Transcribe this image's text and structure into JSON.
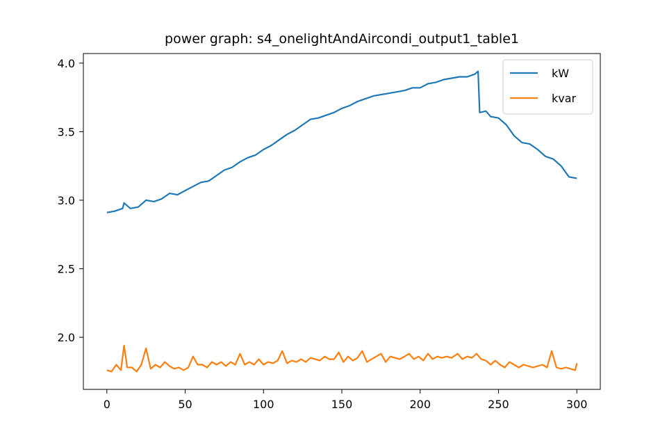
{
  "chart_data": {
    "type": "line",
    "title": "power graph: s4_onelightAndAircondi_output1_table1",
    "xlabel": "",
    "ylabel": "",
    "xlim": [
      -15,
      315
    ],
    "ylim": [
      1.62,
      4.07
    ],
    "x_ticks": [
      "0",
      "50",
      "100",
      "150",
      "200",
      "250",
      "300"
    ],
    "y_ticks": [
      "2.0",
      "2.5",
      "3.0",
      "3.5",
      "4.0"
    ],
    "legend_position": "top-right",
    "grid": false,
    "series": [
      {
        "name": "kW",
        "color": "#1f77b4",
        "points": [
          [
            0,
            2.91
          ],
          [
            5,
            2.92
          ],
          [
            10,
            2.94
          ],
          [
            11,
            2.98
          ],
          [
            15,
            2.94
          ],
          [
            20,
            2.95
          ],
          [
            25,
            3.0
          ],
          [
            30,
            2.99
          ],
          [
            35,
            3.01
          ],
          [
            40,
            3.05
          ],
          [
            45,
            3.04
          ],
          [
            50,
            3.07
          ],
          [
            55,
            3.1
          ],
          [
            60,
            3.13
          ],
          [
            65,
            3.14
          ],
          [
            70,
            3.18
          ],
          [
            75,
            3.22
          ],
          [
            80,
            3.24
          ],
          [
            85,
            3.28
          ],
          [
            90,
            3.31
          ],
          [
            95,
            3.33
          ],
          [
            100,
            3.37
          ],
          [
            105,
            3.4
          ],
          [
            110,
            3.44
          ],
          [
            115,
            3.48
          ],
          [
            120,
            3.51
          ],
          [
            125,
            3.55
          ],
          [
            130,
            3.59
          ],
          [
            135,
            3.6
          ],
          [
            140,
            3.62
          ],
          [
            145,
            3.64
          ],
          [
            150,
            3.67
          ],
          [
            155,
            3.69
          ],
          [
            160,
            3.72
          ],
          [
            165,
            3.74
          ],
          [
            170,
            3.76
          ],
          [
            175,
            3.77
          ],
          [
            180,
            3.78
          ],
          [
            185,
            3.79
          ],
          [
            190,
            3.8
          ],
          [
            195,
            3.82
          ],
          [
            200,
            3.82
          ],
          [
            205,
            3.85
          ],
          [
            210,
            3.86
          ],
          [
            215,
            3.88
          ],
          [
            220,
            3.89
          ],
          [
            225,
            3.9
          ],
          [
            230,
            3.9
          ],
          [
            235,
            3.92
          ],
          [
            237,
            3.94
          ],
          [
            238,
            3.64
          ],
          [
            242,
            3.65
          ],
          [
            245,
            3.61
          ],
          [
            250,
            3.6
          ],
          [
            255,
            3.55
          ],
          [
            260,
            3.47
          ],
          [
            265,
            3.42
          ],
          [
            270,
            3.41
          ],
          [
            275,
            3.37
          ],
          [
            280,
            3.32
          ],
          [
            285,
            3.3
          ],
          [
            290,
            3.25
          ],
          [
            295,
            3.17
          ],
          [
            300,
            3.16
          ]
        ]
      },
      {
        "name": "kvar",
        "color": "#ff7f0e",
        "points": [
          [
            0,
            1.76
          ],
          [
            3,
            1.75
          ],
          [
            6,
            1.8
          ],
          [
            9,
            1.76
          ],
          [
            11,
            1.94
          ],
          [
            13,
            1.78
          ],
          [
            16,
            1.78
          ],
          [
            19,
            1.75
          ],
          [
            22,
            1.8
          ],
          [
            25,
            1.92
          ],
          [
            28,
            1.77
          ],
          [
            31,
            1.8
          ],
          [
            34,
            1.78
          ],
          [
            37,
            1.82
          ],
          [
            40,
            1.79
          ],
          [
            43,
            1.77
          ],
          [
            46,
            1.78
          ],
          [
            49,
            1.76
          ],
          [
            52,
            1.78
          ],
          [
            55,
            1.86
          ],
          [
            58,
            1.8
          ],
          [
            61,
            1.8
          ],
          [
            64,
            1.78
          ],
          [
            67,
            1.82
          ],
          [
            70,
            1.8
          ],
          [
            73,
            1.82
          ],
          [
            76,
            1.79
          ],
          [
            79,
            1.82
          ],
          [
            82,
            1.8
          ],
          [
            85,
            1.88
          ],
          [
            88,
            1.8
          ],
          [
            91,
            1.82
          ],
          [
            94,
            1.8
          ],
          [
            97,
            1.84
          ],
          [
            100,
            1.8
          ],
          [
            103,
            1.82
          ],
          [
            106,
            1.81
          ],
          [
            109,
            1.83
          ],
          [
            112,
            1.9
          ],
          [
            115,
            1.81
          ],
          [
            118,
            1.83
          ],
          [
            121,
            1.82
          ],
          [
            124,
            1.84
          ],
          [
            127,
            1.82
          ],
          [
            130,
            1.85
          ],
          [
            133,
            1.84
          ],
          [
            136,
            1.83
          ],
          [
            139,
            1.86
          ],
          [
            142,
            1.84
          ],
          [
            145,
            1.84
          ],
          [
            148,
            1.89
          ],
          [
            151,
            1.82
          ],
          [
            154,
            1.86
          ],
          [
            157,
            1.83
          ],
          [
            160,
            1.85
          ],
          [
            163,
            1.9
          ],
          [
            166,
            1.82
          ],
          [
            169,
            1.84
          ],
          [
            172,
            1.86
          ],
          [
            175,
            1.88
          ],
          [
            178,
            1.82
          ],
          [
            181,
            1.86
          ],
          [
            184,
            1.85
          ],
          [
            187,
            1.84
          ],
          [
            190,
            1.86
          ],
          [
            193,
            1.88
          ],
          [
            196,
            1.84
          ],
          [
            199,
            1.86
          ],
          [
            202,
            1.83
          ],
          [
            205,
            1.88
          ],
          [
            208,
            1.84
          ],
          [
            211,
            1.86
          ],
          [
            214,
            1.85
          ],
          [
            217,
            1.86
          ],
          [
            220,
            1.85
          ],
          [
            224,
            1.88
          ],
          [
            227,
            1.84
          ],
          [
            230,
            1.86
          ],
          [
            233,
            1.85
          ],
          [
            236,
            1.88
          ],
          [
            239,
            1.84
          ],
          [
            242,
            1.83
          ],
          [
            245,
            1.8
          ],
          [
            248,
            1.83
          ],
          [
            251,
            1.8
          ],
          [
            254,
            1.78
          ],
          [
            257,
            1.82
          ],
          [
            260,
            1.8
          ],
          [
            263,
            1.78
          ],
          [
            266,
            1.8
          ],
          [
            269,
            1.79
          ],
          [
            272,
            1.78
          ],
          [
            275,
            1.79
          ],
          [
            278,
            1.8
          ],
          [
            281,
            1.78
          ],
          [
            284,
            1.9
          ],
          [
            287,
            1.78
          ],
          [
            290,
            1.77
          ],
          [
            293,
            1.78
          ],
          [
            296,
            1.77
          ],
          [
            299,
            1.76
          ],
          [
            300,
            1.81
          ]
        ]
      }
    ]
  }
}
